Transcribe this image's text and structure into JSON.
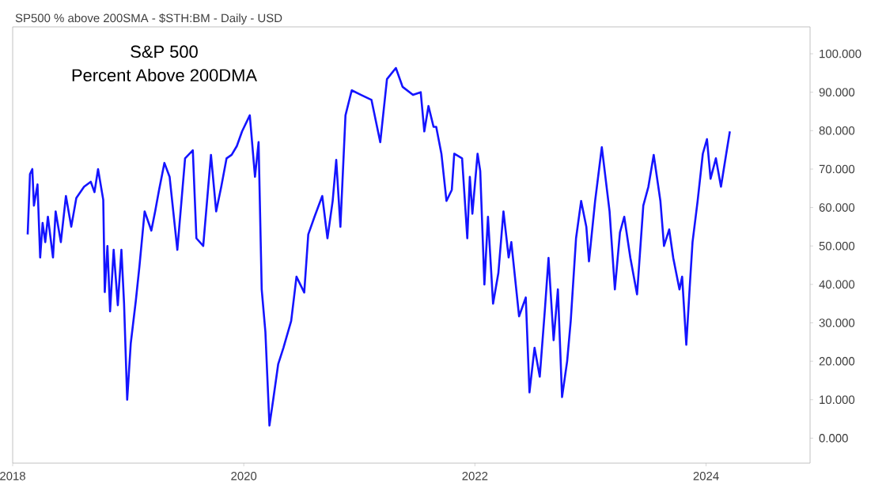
{
  "chart_data": {
    "type": "line",
    "title": "SP500 % above 200SMA - $STH:BM - Daily - USD",
    "annotations": [
      "S&P 500",
      "Percent Above 200DMA"
    ],
    "x": [
      2018.13,
      2018.15,
      2018.17,
      2018.184,
      2018.215,
      2018.238,
      2018.259,
      2018.282,
      2018.305,
      2018.349,
      2018.372,
      2018.417,
      2018.461,
      2018.507,
      2018.551,
      2018.618,
      2018.676,
      2018.708,
      2018.739,
      2018.784,
      2018.797,
      2018.82,
      2018.843,
      2018.874,
      2018.91,
      2018.941,
      2018.964,
      2018.991,
      2019.022,
      2019.066,
      2019.098,
      2019.142,
      2019.2,
      2019.233,
      2019.267,
      2019.313,
      2019.358,
      2019.425,
      2019.492,
      2019.559,
      2019.59,
      2019.649,
      2019.716,
      2019.761,
      2019.805,
      2019.851,
      2019.895,
      2019.94,
      2019.985,
      2020.052,
      2020.097,
      2020.128,
      2020.155,
      2020.187,
      2020.222,
      2020.254,
      2020.298,
      2020.343,
      2020.41,
      2020.456,
      2020.523,
      2020.558,
      2020.612,
      2020.679,
      2020.724,
      2020.769,
      2020.8,
      2020.836,
      2020.88,
      2020.934,
      2021.015,
      2021.105,
      2021.181,
      2021.239,
      2021.316,
      2021.374,
      2021.464,
      2021.531,
      2021.562,
      2021.598,
      2021.642,
      2021.665,
      2021.71,
      2021.754,
      2021.8,
      2021.821,
      2021.889,
      2021.934,
      2021.956,
      2021.978,
      2022.023,
      2022.046,
      2022.082,
      2022.113,
      2022.157,
      2022.203,
      2022.247,
      2022.292,
      2022.315,
      2022.382,
      2022.44,
      2022.472,
      2022.516,
      2022.561,
      2022.606,
      2022.637,
      2022.681,
      2022.718,
      2022.754,
      2022.798,
      2022.829,
      2022.875,
      2022.919,
      2022.964,
      2022.987,
      2023.04,
      2023.098,
      2023.165,
      2023.211,
      2023.255,
      2023.292,
      2023.345,
      2023.403,
      2023.457,
      2023.501,
      2023.547,
      2023.605,
      2023.636,
      2023.681,
      2023.716,
      2023.77,
      2023.793,
      2023.829,
      2023.86,
      2023.883,
      2023.927,
      2023.972,
      2024.008,
      2024.039,
      2024.085,
      2024.129,
      2024.173,
      2024.206
    ],
    "series": [
      {
        "color": "#1414ff",
        "values": [
          53,
          68.7,
          70,
          60.5,
          66,
          47,
          56,
          51,
          57.6,
          47,
          59,
          51,
          63,
          55,
          62.5,
          65.4,
          66.7,
          64,
          70,
          62,
          38,
          50,
          33,
          49,
          34.6,
          49,
          35,
          10,
          24.7,
          35.8,
          45,
          59,
          54,
          59,
          64.6,
          71.6,
          68,
          49,
          72.8,
          74.9,
          52,
          50,
          73.7,
          59,
          65.4,
          72.8,
          73.7,
          76,
          79.8,
          84,
          68,
          77,
          38.7,
          27.6,
          3.3,
          9.9,
          19.3,
          23.5,
          30.5,
          42,
          37.9,
          53,
          57.6,
          63,
          52,
          61.7,
          72.4,
          55,
          84,
          90.5,
          89.3,
          88,
          77,
          93.4,
          96.3,
          91.4,
          89.3,
          90,
          79.8,
          86.4,
          81,
          81,
          74,
          61.7,
          64.6,
          74,
          72.8,
          52,
          68,
          58.4,
          74,
          69.5,
          40,
          57.6,
          35,
          43,
          59,
          47,
          51,
          31.7,
          36.6,
          11.9,
          23.5,
          16,
          33.7,
          46.9,
          25.5,
          38.7,
          10.7,
          20,
          30.5,
          52,
          61.7,
          55,
          46,
          61.7,
          75.7,
          59,
          38.7,
          53.5,
          57.6,
          46.9,
          37.4,
          60.5,
          65.4,
          73.7,
          61.7,
          50,
          54.3,
          46.9,
          38.7,
          42,
          24.3,
          40,
          51,
          61.7,
          74,
          77.8,
          67.5,
          72.8,
          65.4,
          73.7,
          79.8
        ]
      }
    ],
    "xlim": [
      2018.0,
      2024.9
    ],
    "xticks": [
      2018,
      2020,
      2022,
      2024
    ],
    "ylim": [
      -6.5,
      107
    ],
    "yticks": [
      {
        "value": 0,
        "label": "0.000"
      },
      {
        "value": 10,
        "label": "10.000"
      },
      {
        "value": 20,
        "label": "20.000"
      },
      {
        "value": 30,
        "label": "30.000"
      },
      {
        "value": 40,
        "label": "40.000"
      },
      {
        "value": 50,
        "label": "50.000"
      },
      {
        "value": 60,
        "label": "60.000"
      },
      {
        "value": 70,
        "label": "70.000"
      },
      {
        "value": 80,
        "label": "80.000"
      },
      {
        "value": 90,
        "label": "90.000"
      },
      {
        "value": 100,
        "label": "100.000"
      }
    ],
    "grid": false,
    "legend": false,
    "marker": "none",
    "line_style": "solid"
  }
}
